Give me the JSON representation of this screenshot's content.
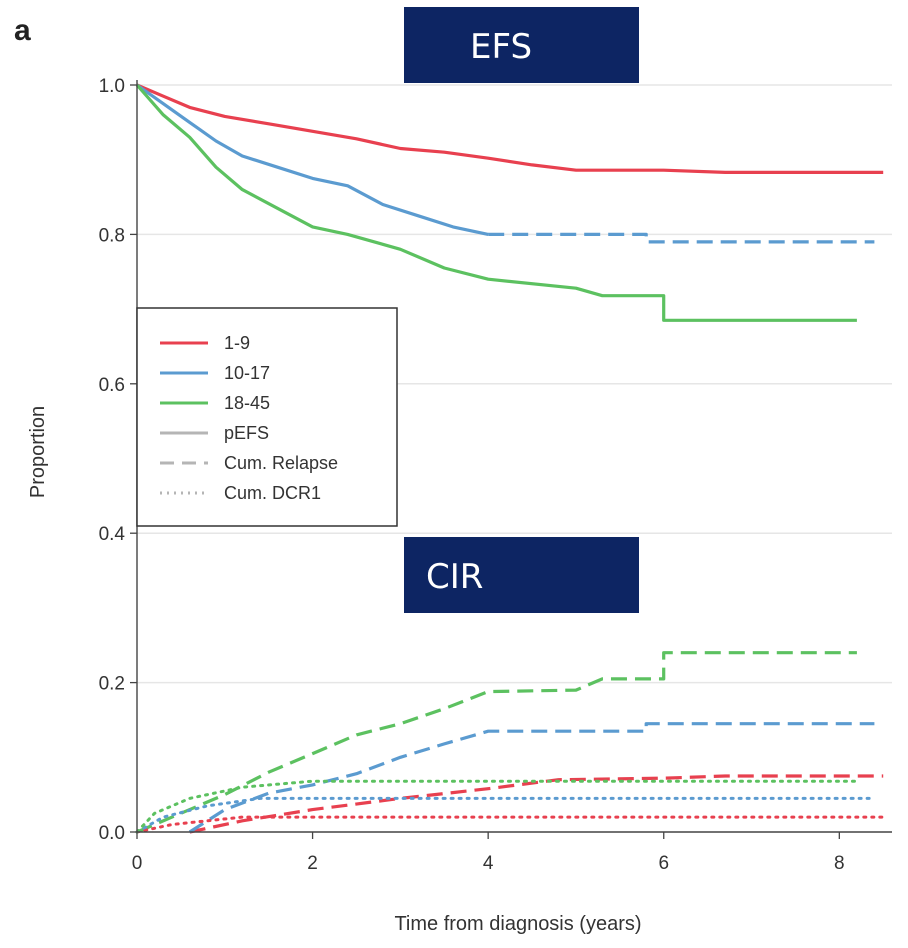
{
  "panel_label": "a",
  "chart_data": {
    "type": "line",
    "title": "",
    "panel_titles": [
      "EFS",
      "CIR"
    ],
    "xlabel": "Time from diagnosis (years)",
    "ylabel": "Proportion",
    "xlim": [
      0,
      8.6
    ],
    "ylim": [
      0,
      1.0
    ],
    "x_ticks": [
      0,
      2,
      4,
      6,
      8
    ],
    "y_ticks": [
      0.0,
      0.2,
      0.4,
      0.6,
      0.8,
      1.0
    ],
    "x_tick_labels": [
      "0",
      "2",
      "4",
      "6",
      "8"
    ],
    "y_tick_labels": [
      "0.0",
      "0.2",
      "0.4",
      "0.6",
      "0.8",
      "1.0"
    ],
    "grid": "horizontal",
    "legend_position": "middle-left",
    "legend": [
      {
        "label": "1-9",
        "color": "#e8404f",
        "style": "solid"
      },
      {
        "label": "10-17",
        "color": "#5b9bd0",
        "style": "solid"
      },
      {
        "label": "18-45",
        "color": "#5cc160",
        "style": "solid"
      },
      {
        "label": "pEFS",
        "color": "#b5b5b5",
        "style": "solid"
      },
      {
        "label": "Cum. Relapse",
        "color": "#b5b5b5",
        "style": "dashed"
      },
      {
        "label": "Cum. DCR1",
        "color": "#b5b5b5",
        "style": "dotted"
      }
    ],
    "colors": {
      "g1": "#e8404f",
      "g2": "#5b9bd0",
      "g3": "#5cc160",
      "banner": "#0d2563"
    },
    "series": [
      {
        "name": "1-9",
        "metric": "pEFS",
        "style": "solid",
        "color": "#e8404f",
        "x": [
          0,
          0.3,
          0.6,
          1.0,
          1.5,
          2.0,
          2.5,
          3.0,
          3.5,
          4.0,
          4.5,
          5.0,
          6.0,
          6.7,
          8.5
        ],
        "y": [
          1.0,
          0.985,
          0.97,
          0.958,
          0.948,
          0.938,
          0.928,
          0.915,
          0.91,
          0.902,
          0.893,
          0.886,
          0.886,
          0.883,
          0.883
        ]
      },
      {
        "name": "10-17",
        "metric": "pEFS",
        "style": "solid",
        "color": "#5b9bd0",
        "x": [
          0,
          0.3,
          0.6,
          0.9,
          1.2,
          1.6,
          2.0,
          2.4,
          2.8,
          3.2,
          3.6,
          4.0
        ],
        "y": [
          1.0,
          0.975,
          0.95,
          0.925,
          0.905,
          0.89,
          0.875,
          0.865,
          0.84,
          0.825,
          0.81,
          0.8
        ]
      },
      {
        "name": "10-17",
        "metric": "pEFS (censored tail)",
        "style": "dashed",
        "color": "#5b9bd0",
        "x": [
          4.0,
          5.8,
          5.8,
          8.4
        ],
        "y": [
          0.8,
          0.8,
          0.79,
          0.79
        ]
      },
      {
        "name": "18-45",
        "metric": "pEFS",
        "style": "solid",
        "color": "#5cc160",
        "x": [
          0,
          0.3,
          0.6,
          0.9,
          1.2,
          1.6,
          2.0,
          2.4,
          3.0,
          3.5,
          4.0,
          5.0,
          5.3,
          6.0,
          6.0,
          8.2
        ],
        "y": [
          1.0,
          0.96,
          0.93,
          0.89,
          0.86,
          0.835,
          0.81,
          0.8,
          0.78,
          0.755,
          0.74,
          0.728,
          0.718,
          0.718,
          0.685,
          0.685
        ]
      },
      {
        "name": "1-9",
        "metric": "Cum. Relapse",
        "style": "dashed",
        "color": "#e8404f",
        "x": [
          0.6,
          1.2,
          2.0,
          3.0,
          4.0,
          4.8,
          6.0,
          6.7,
          8.5
        ],
        "y": [
          0.0,
          0.015,
          0.03,
          0.045,
          0.058,
          0.07,
          0.072,
          0.075,
          0.075
        ]
      },
      {
        "name": "10-17",
        "metric": "Cum. Relapse",
        "style": "dashed",
        "color": "#5b9bd0",
        "x": [
          0.6,
          1.0,
          1.5,
          2.0,
          2.5,
          3.0,
          3.5,
          4.0,
          5.8,
          5.8,
          8.4
        ],
        "y": [
          0.0,
          0.03,
          0.052,
          0.063,
          0.078,
          0.1,
          0.118,
          0.135,
          0.135,
          0.145,
          0.145
        ]
      },
      {
        "name": "18-45",
        "metric": "Cum. Relapse",
        "style": "dashed",
        "color": "#5cc160",
        "x": [
          0,
          0.5,
          1.0,
          1.5,
          2.0,
          2.5,
          3.0,
          3.5,
          4.0,
          5.0,
          5.3,
          6.0,
          6.0,
          8.2
        ],
        "y": [
          0.0,
          0.025,
          0.05,
          0.08,
          0.105,
          0.13,
          0.145,
          0.165,
          0.188,
          0.19,
          0.205,
          0.205,
          0.24,
          0.24
        ]
      },
      {
        "name": "1-9",
        "metric": "Cum. DCR1",
        "style": "dotted",
        "color": "#e8404f",
        "x": [
          0,
          0.4,
          1.2,
          8.5
        ],
        "y": [
          0.0,
          0.01,
          0.02,
          0.02
        ]
      },
      {
        "name": "10-17",
        "metric": "Cum. DCR1",
        "style": "dotted",
        "color": "#5b9bd0",
        "x": [
          0,
          0.3,
          0.8,
          1.4,
          8.4
        ],
        "y": [
          0.0,
          0.02,
          0.035,
          0.045,
          0.045
        ]
      },
      {
        "name": "18-45",
        "metric": "Cum. DCR1",
        "style": "dotted",
        "color": "#5cc160",
        "x": [
          0,
          0.2,
          0.6,
          1.2,
          2.0,
          8.2
        ],
        "y": [
          0.0,
          0.025,
          0.045,
          0.06,
          0.068,
          0.068
        ]
      }
    ]
  }
}
